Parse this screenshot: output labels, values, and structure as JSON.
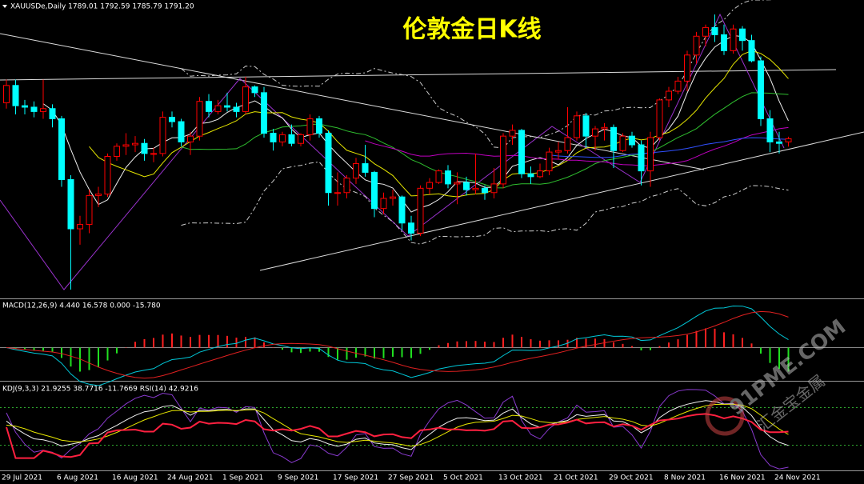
{
  "chart_data": {
    "type": "candlestick",
    "title": "伦敦金日K线",
    "symbol": "XAUUSDe,Daily  1789.01 1792.59 1785.79 1791.20",
    "categories": [
      "29 Jul 2021",
      null,
      null,
      null,
      null,
      null,
      "6 Aug 2021",
      null,
      null,
      null,
      null,
      null,
      "16 Aug 2021",
      null,
      null,
      null,
      null,
      null,
      "24 Aug 2021",
      null,
      null,
      null,
      null,
      null,
      "1 Sep 2021",
      null,
      null,
      null,
      null,
      null,
      "9 Sep 2021",
      null,
      null,
      null,
      null,
      null,
      "17 Sep 2021",
      null,
      null,
      null,
      null,
      null,
      "27 Sep 2021",
      null,
      null,
      null,
      null,
      null,
      "5 Oct 2021",
      null,
      null,
      null,
      null,
      null,
      "13 Oct 2021",
      null,
      null,
      null,
      null,
      null,
      "21 Oct 2021",
      null,
      null,
      null,
      null,
      null,
      "29 Oct 2021",
      null,
      null,
      null,
      null,
      null,
      "8 Nov 2021",
      null,
      null,
      null,
      null,
      null,
      "16 Nov 2021",
      null,
      null,
      null,
      null,
      null,
      "24 Nov 2021",
      null
    ],
    "open": [
      1816,
      1828,
      1814,
      1813,
      1810,
      1812,
      1805,
      1763,
      1729,
      1732,
      1752,
      1753,
      1779,
      1786,
      1787,
      1788,
      1781,
      1781,
      1806,
      1803,
      1789,
      1793,
      1817,
      1810,
      1814,
      1813,
      1810,
      1827,
      1823,
      1795,
      1789,
      1794,
      1788,
      1794,
      1805,
      1795,
      1754,
      1754,
      1764,
      1774,
      1768,
      1743,
      1750,
      1751,
      1733,
      1726,
      1757,
      1761,
      1769,
      1760,
      1761,
      1756,
      1757,
      1754,
      1760,
      1793,
      1797,
      1767,
      1765,
      1769,
      1782,
      1783,
      1792,
      1807,
      1793,
      1798,
      1799,
      1783,
      1793,
      1787,
      1769,
      1792,
      1818,
      1824,
      1831,
      1849,
      1862,
      1868,
      1863,
      1852,
      1867,
      1859,
      1845,
      1805,
      1789,
      1789.01
    ],
    "high": [
      1832,
      1832,
      1818,
      1817,
      1832,
      1815,
      1807,
      1766,
      1738,
      1756,
      1758,
      1781,
      1788,
      1795,
      1793,
      1791,
      1785,
      1810,
      1810,
      1805,
      1796,
      1820,
      1822,
      1818,
      1823,
      1816,
      1834,
      1828,
      1827,
      1798,
      1796,
      1801,
      1795,
      1808,
      1807,
      1797,
      1768,
      1766,
      1778,
      1787,
      1769,
      1754,
      1756,
      1752,
      1738,
      1759,
      1764,
      1770,
      1773,
      1768,
      1765,
      1781,
      1759,
      1771,
      1795,
      1801,
      1798,
      1772,
      1774,
      1785,
      1789,
      1813,
      1810,
      1809,
      1800,
      1802,
      1801,
      1795,
      1796,
      1790,
      1796,
      1819,
      1827,
      1834,
      1852,
      1865,
      1870,
      1877,
      1870,
      1870,
      1869,
      1863,
      1848,
      1811,
      1796,
      1792.59
    ],
    "low": [
      1812,
      1808,
      1808,
      1806,
      1805,
      1799,
      1758,
      1687,
      1718,
      1726,
      1744,
      1751,
      1776,
      1780,
      1782,
      1776,
      1775,
      1779,
      1799,
      1786,
      1780,
      1790,
      1806,
      1808,
      1810,
      1806,
      1808,
      1820,
      1792,
      1783,
      1786,
      1786,
      1786,
      1790,
      1792,
      1745,
      1745,
      1750,
      1760,
      1765,
      1737,
      1739,
      1745,
      1728,
      1721,
      1724,
      1753,
      1760,
      1757,
      1746,
      1752,
      1753,
      1749,
      1750,
      1757,
      1787,
      1764,
      1760,
      1764,
      1766,
      1777,
      1781,
      1790,
      1785,
      1783,
      1790,
      1771,
      1782,
      1785,
      1759,
      1758,
      1790,
      1813,
      1822,
      1824,
      1843,
      1855,
      1858,
      1849,
      1850,
      1852,
      1844,
      1800,
      1782,
      1781,
      1785.79
    ],
    "close": [
      1828,
      1814,
      1813,
      1810,
      1812,
      1805,
      1763,
      1729,
      1732,
      1752,
      1753,
      1779,
      1786,
      1787,
      1788,
      1781,
      1781,
      1806,
      1803,
      1789,
      1793,
      1817,
      1810,
      1814,
      1813,
      1810,
      1827,
      1823,
      1795,
      1789,
      1794,
      1788,
      1794,
      1805,
      1795,
      1754,
      1754,
      1764,
      1774,
      1768,
      1743,
      1750,
      1751,
      1733,
      1726,
      1757,
      1761,
      1769,
      1760,
      1761,
      1756,
      1757,
      1754,
      1760,
      1793,
      1797,
      1767,
      1765,
      1769,
      1782,
      1783,
      1792,
      1807,
      1793,
      1798,
      1799,
      1783,
      1793,
      1787,
      1769,
      1792,
      1818,
      1824,
      1831,
      1849,
      1862,
      1868,
      1863,
      1852,
      1867,
      1859,
      1845,
      1805,
      1789,
      1788,
      1791.2
    ],
    "up_color": "#ff0000",
    "down_color": "#00ffff",
    "ylim": [
      1681.5,
      1887
    ]
  },
  "indicators": {
    "macd": "MACD(12,26,9) 4.440 16.578 0.000 -15.780",
    "kdj": "KDJ(9,3,3) 21.9255 38.7716 -11.7669  RSI(14) 42.9216"
  },
  "watermark": {
    "site": "91PME.COM",
    "brand": "汇金宝金属"
  }
}
